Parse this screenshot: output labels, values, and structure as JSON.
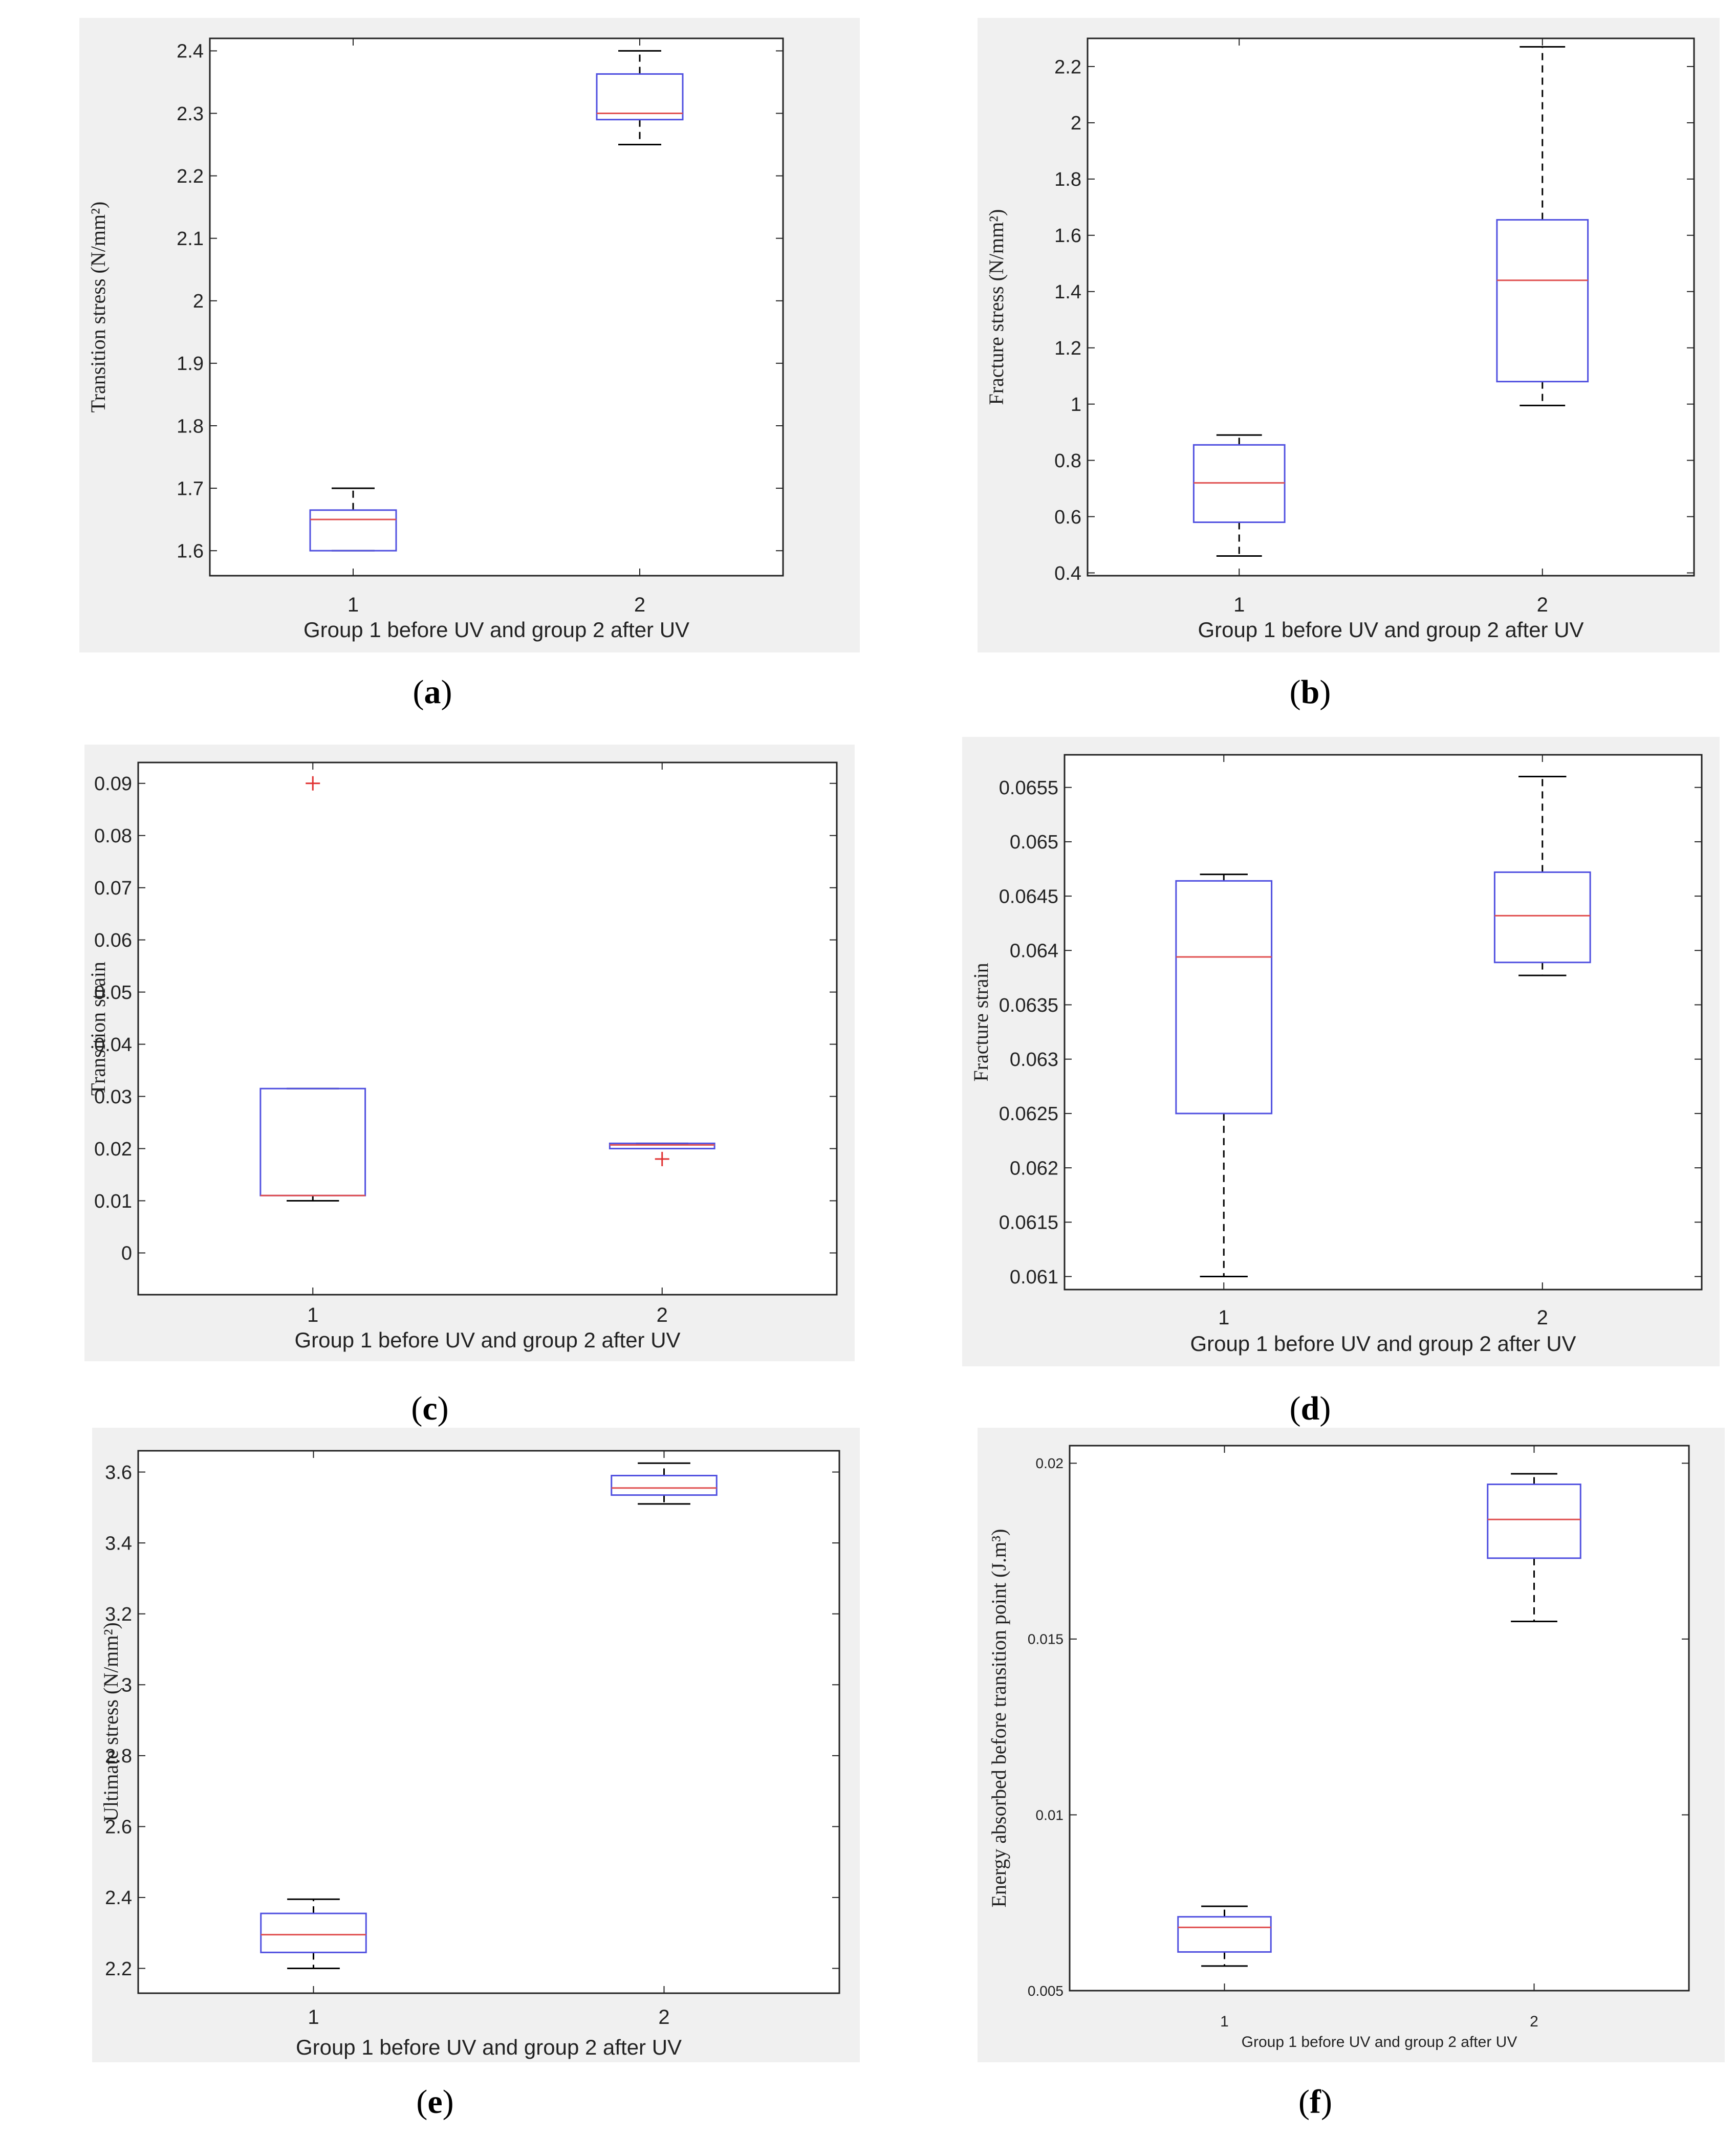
{
  "figure": {
    "captions": [
      "(a)",
      "(b)",
      "(c)",
      "(d)",
      "(e)",
      "(f)"
    ],
    "caption_letters": [
      "a",
      "b",
      "c",
      "d",
      "e",
      "f"
    ]
  },
  "colors": {
    "box": "#5050e0",
    "median": "#e05050",
    "whisker": "#000000",
    "outlier": "#e03030",
    "frame_bg": "#f0f0f0",
    "axes_bg": "#ffffff"
  },
  "chart_data": [
    {
      "id": "a",
      "type": "boxplot",
      "ylabel": "Transition stress (N/mm²)",
      "xlabel": "Group 1 before UV and group 2 after UV",
      "categories": [
        "1",
        "2"
      ],
      "ylim": [
        1.56,
        2.42
      ],
      "yticks": [
        1.6,
        1.7,
        1.8,
        1.9,
        2,
        2.1,
        2.2,
        2.3,
        2.4
      ],
      "ytick_labels": [
        "1.6",
        "1.7",
        "1.8",
        "1.9",
        "2",
        "2.1",
        "2.2",
        "2.3",
        "2.4"
      ],
      "boxes": [
        {
          "min": 1.6,
          "q1": 1.6,
          "median": 1.65,
          "q3": 1.665,
          "max": 1.7,
          "outliers": []
        },
        {
          "min": 2.25,
          "q1": 2.29,
          "median": 2.3,
          "q3": 2.363,
          "max": 2.4,
          "outliers": []
        }
      ]
    },
    {
      "id": "b",
      "type": "boxplot",
      "ylabel": "Fracture stress (N/mm²)",
      "xlabel": "Group 1 before UV and group 2 after UV",
      "categories": [
        "1",
        "2"
      ],
      "ylim": [
        0.39,
        2.3
      ],
      "yticks": [
        0.4,
        0.6,
        0.8,
        1,
        1.2,
        1.4,
        1.6,
        1.8,
        2,
        2.2
      ],
      "ytick_labels": [
        "0.4",
        "0.6",
        "0.8",
        "1",
        "1.2",
        "1.4",
        "1.6",
        "1.8",
        "2",
        "2.2"
      ],
      "boxes": [
        {
          "min": 0.46,
          "q1": 0.58,
          "median": 0.72,
          "q3": 0.855,
          "max": 0.89,
          "outliers": []
        },
        {
          "min": 0.995,
          "q1": 1.08,
          "median": 1.44,
          "q3": 1.655,
          "max": 2.27,
          "outliers": []
        }
      ]
    },
    {
      "id": "c",
      "type": "boxplot",
      "ylabel": "Transition strain",
      "xlabel": "Group 1 before UV and group 2 after UV",
      "categories": [
        "1",
        "2"
      ],
      "ylim": [
        -0.008,
        0.094
      ],
      "yticks": [
        0,
        0.01,
        0.02,
        0.03,
        0.04,
        0.05,
        0.06,
        0.07,
        0.08,
        0.09
      ],
      "ytick_labels": [
        "0",
        "0.01",
        "0.02",
        "0.03",
        "0.04",
        "0.05",
        "0.06",
        "0.07",
        "0.08",
        "0.09"
      ],
      "boxes": [
        {
          "min": 0.01,
          "q1": 0.011,
          "median": 0.011,
          "q3": 0.0315,
          "max": 0.0315,
          "outliers": [
            0.09
          ]
        },
        {
          "min": 0.02,
          "q1": 0.02,
          "median": 0.0207,
          "q3": 0.021,
          "max": 0.021,
          "outliers": [
            0.018
          ]
        }
      ]
    },
    {
      "id": "d",
      "type": "boxplot",
      "ylabel": "Fracture strain",
      "xlabel": "Group 1 before UV and group 2 after UV",
      "categories": [
        "1",
        "2"
      ],
      "ylim": [
        0.06088,
        0.0658
      ],
      "yticks": [
        0.061,
        0.0615,
        0.062,
        0.0625,
        0.063,
        0.0635,
        0.064,
        0.0645,
        0.065,
        0.0655
      ],
      "ytick_labels": [
        "0.061",
        "0.0615",
        "0.062",
        "0.0625",
        "0.063",
        "0.0635",
        "0.064",
        "0.0645",
        "0.065",
        "0.0655"
      ],
      "boxes": [
        {
          "min": 0.061,
          "q1": 0.0625,
          "median": 0.06394,
          "q3": 0.06464,
          "max": 0.0647,
          "outliers": []
        },
        {
          "min": 0.06377,
          "q1": 0.06389,
          "median": 0.06432,
          "q3": 0.06472,
          "max": 0.0656,
          "outliers": []
        }
      ]
    },
    {
      "id": "e",
      "type": "boxplot",
      "ylabel": "Ultimate stress (N/mm²)",
      "xlabel": "Group 1 before UV and group 2 after UV",
      "categories": [
        "1",
        "2"
      ],
      "ylim": [
        2.13,
        3.66
      ],
      "yticks": [
        2.2,
        2.4,
        2.6,
        2.8,
        3,
        3.2,
        3.4,
        3.6
      ],
      "ytick_labels": [
        "2.2",
        "2.4",
        "2.6",
        "2.8",
        "3",
        "3.2",
        "3.4",
        "3.6"
      ],
      "boxes": [
        {
          "min": 2.2,
          "q1": 2.245,
          "median": 2.295,
          "q3": 2.355,
          "max": 2.395,
          "outliers": []
        },
        {
          "min": 3.51,
          "q1": 3.535,
          "median": 3.555,
          "q3": 3.59,
          "max": 3.625,
          "outliers": []
        }
      ]
    },
    {
      "id": "f",
      "type": "boxplot",
      "ylabel": "Energy absorbed before transition point (J.m³)",
      "xlabel": "Group 1 before UV and group 2 after UV",
      "categories": [
        "1",
        "2"
      ],
      "ylim": [
        0.005,
        0.0205
      ],
      "yticks": [
        0.005,
        0.01,
        0.015,
        0.02
      ],
      "ytick_labels": [
        "0.005",
        "0.01",
        "0.015",
        "0.02"
      ],
      "boxes": [
        {
          "min": 0.0057,
          "q1": 0.0061,
          "median": 0.0068,
          "q3": 0.0071,
          "max": 0.0074,
          "outliers": []
        },
        {
          "min": 0.0155,
          "q1": 0.0173,
          "median": 0.0184,
          "q3": 0.0194,
          "max": 0.0197,
          "outliers": []
        }
      ]
    }
  ]
}
